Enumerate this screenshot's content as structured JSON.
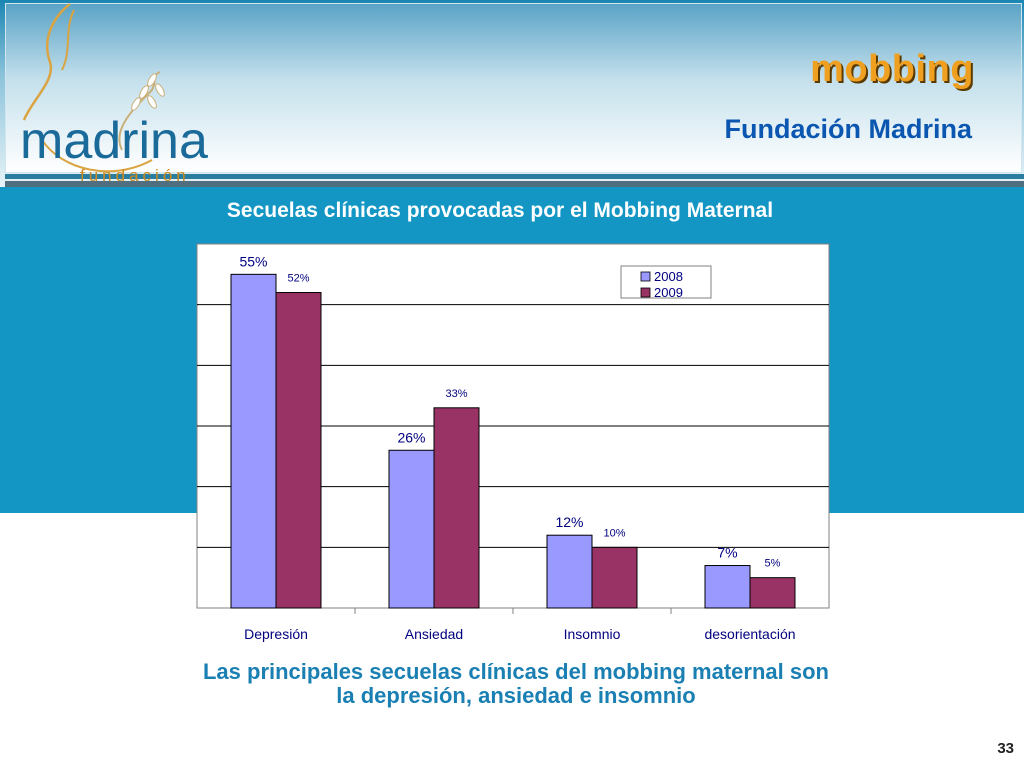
{
  "header": {
    "title": "mobbing",
    "subtitle": "Fundación Madrina"
  },
  "logo": {
    "word": "madrina",
    "sub": "fundación"
  },
  "chart_heading": "Secuelas clínicas provocadas por el Mobbing Maternal",
  "conclusion": [
    "Las principales secuelas clínicas del mobbing maternal son",
    "la depresión, ansiedad e insomnio"
  ],
  "page_number": "33",
  "colors": {
    "series_2008": "#9999ff",
    "series_2009": "#993366",
    "band": "#1496c4",
    "title_orange": "#f0a020"
  },
  "chart_data": {
    "type": "bar",
    "categories": [
      "Depresión",
      "Ansiedad",
      "Insomnio",
      "desorientación"
    ],
    "series": [
      {
        "name": "2008",
        "values": [
          55,
          26,
          12,
          7
        ],
        "labels": [
          "55%",
          "26%",
          "12%",
          "7%"
        ]
      },
      {
        "name": "2009",
        "values": [
          52,
          33,
          10,
          5
        ],
        "labels": [
          "52%",
          "33%",
          "10%",
          "5%"
        ]
      }
    ],
    "ylim": [
      0,
      60
    ],
    "grid": true,
    "legend": "top-right"
  }
}
